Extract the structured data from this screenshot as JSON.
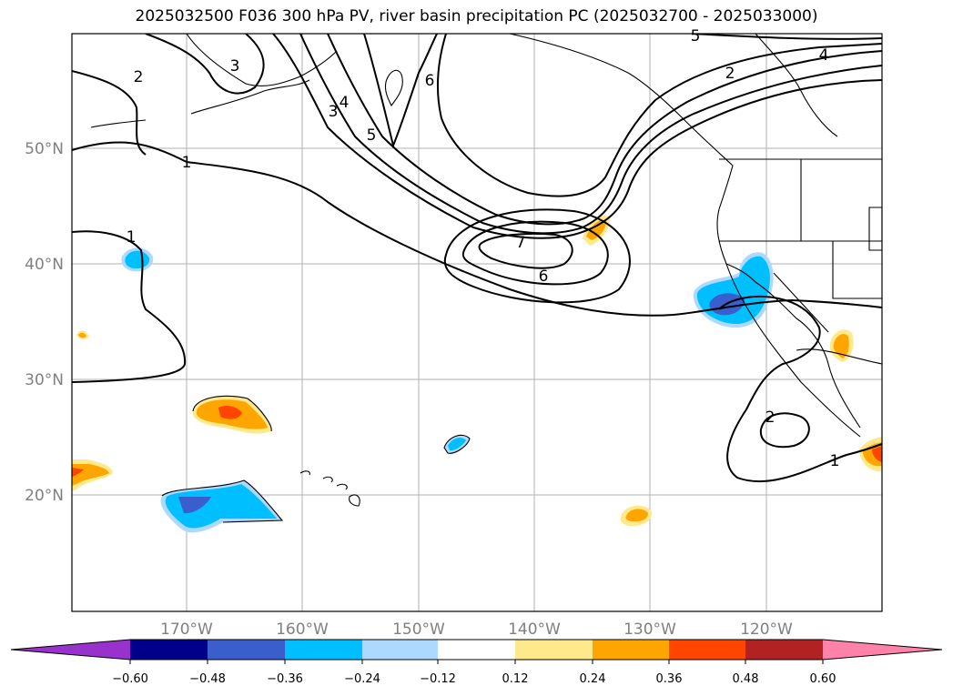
{
  "title": "2025032500 F036 300 hPa PV, river basin precipitation PC (2025032700 - 2025033000)",
  "latitude_labels": [
    "50°N",
    "40°N",
    "30°N",
    "20°N"
  ],
  "longitude_labels": [
    "170°W",
    "160°W",
    "150°W",
    "140°W",
    "130°W",
    "120°W"
  ],
  "pv_contour_labels": [
    "1",
    "1",
    "2",
    "2",
    "3",
    "3",
    "4",
    "4",
    "5",
    "5",
    "6",
    "6",
    "7",
    "2",
    "1"
  ],
  "colorbar": {
    "tick_labels": [
      "−0.60",
      "−0.48",
      "−0.36",
      "−0.24",
      "−0.12",
      "0.12",
      "0.24",
      "0.36",
      "0.48",
      "0.60"
    ],
    "colors": [
      "#9932cc",
      "#00008b",
      "#3a5fcd",
      "#00bfff",
      "#add8ff",
      "#ffffff",
      "#ffe98a",
      "#ffa500",
      "#ff4500",
      "#b22222",
      "#ff82ab"
    ]
  }
}
